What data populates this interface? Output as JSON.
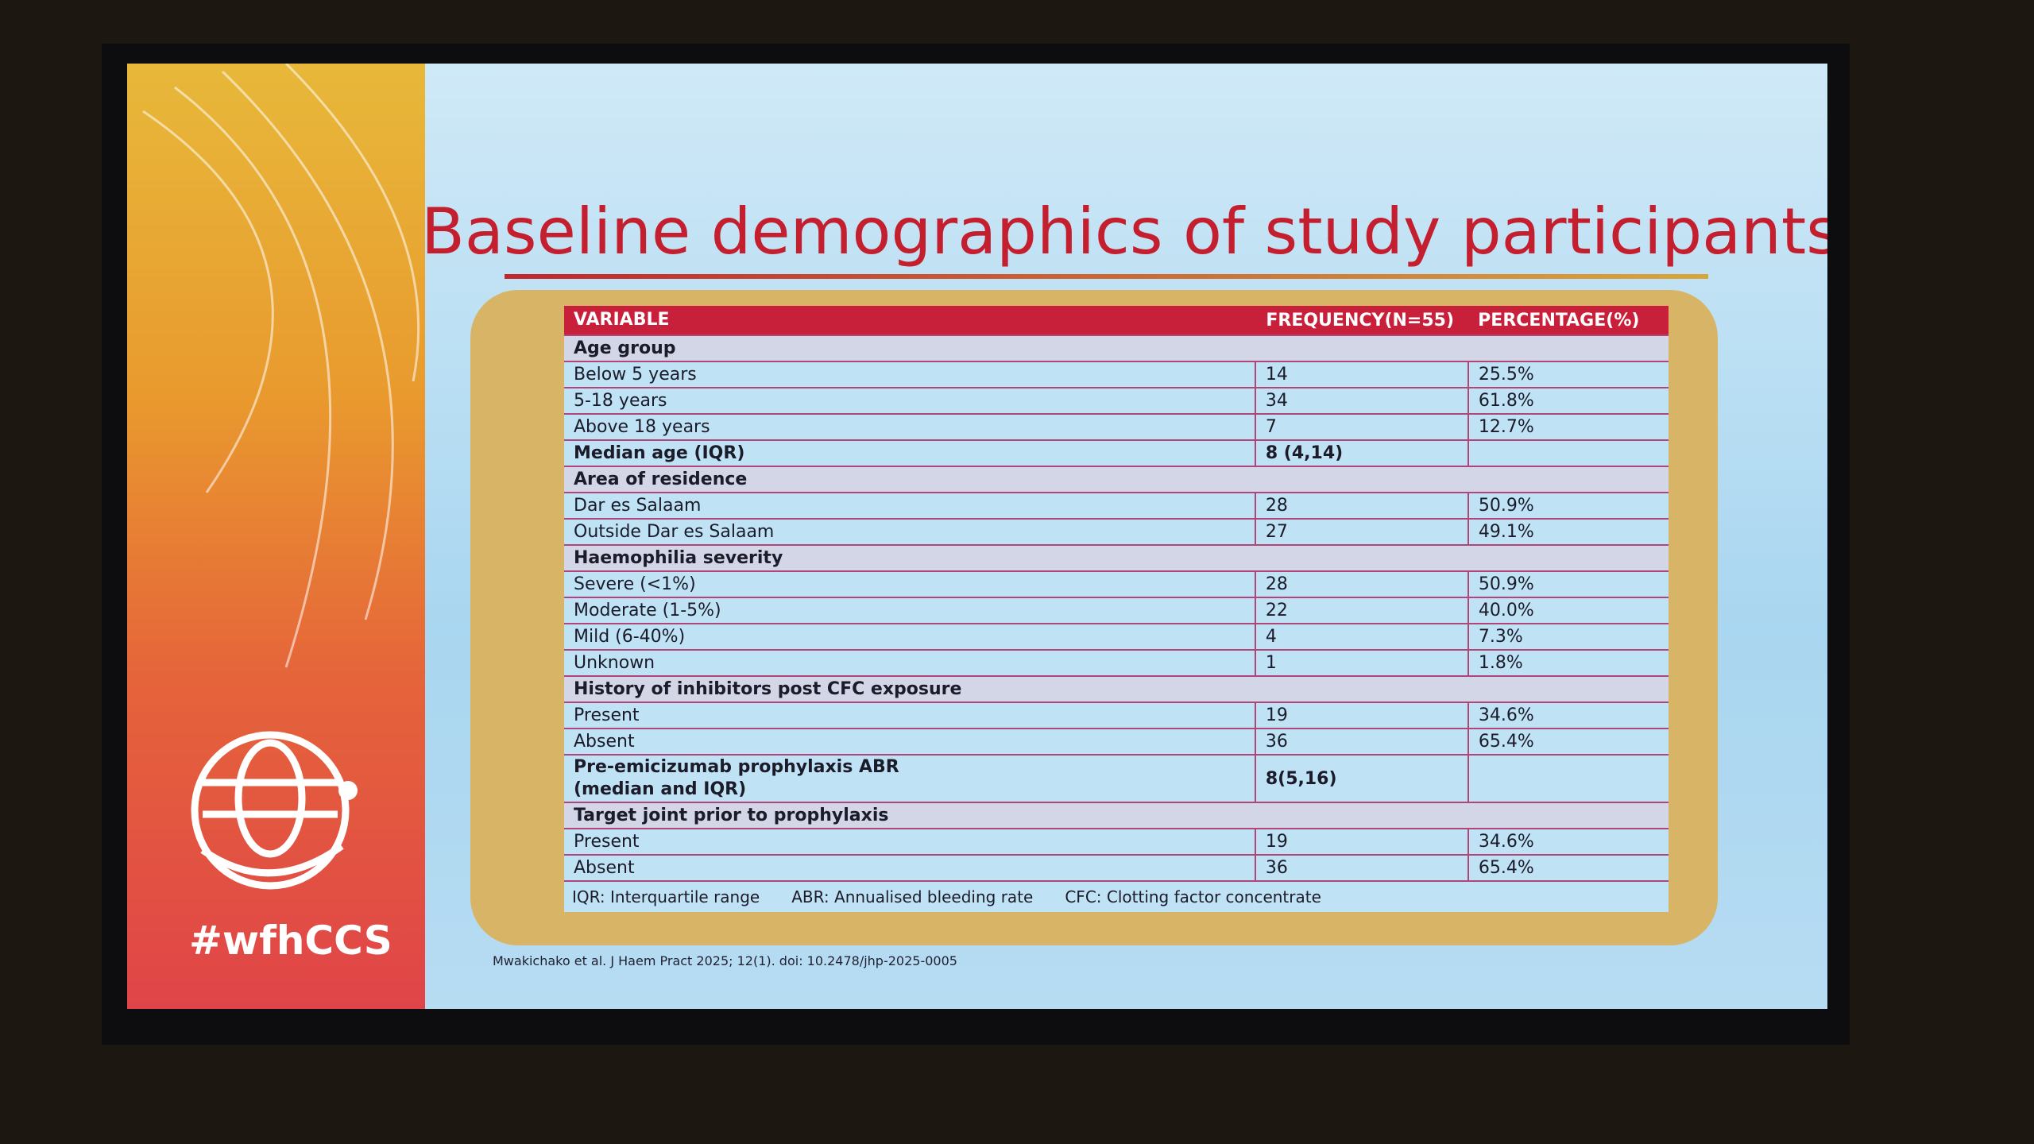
{
  "slide": {
    "title": "Baseline demographics of study participants",
    "brand": "#wfhCCS",
    "table": {
      "header": [
        "VARIABLE",
        "FREQUENCY(N=55)",
        "PERCENTAGE(%)"
      ],
      "rows": [
        [
          "Age group"
        ],
        [
          "Below 5 years",
          "14",
          "25.5%"
        ],
        [
          "5-18 years",
          "34",
          "61.8%"
        ],
        [
          "Above 18 years",
          "7",
          "12.7%"
        ],
        [
          "Median age (IQR)",
          "8 (4,14)"
        ],
        [
          "Area of residence"
        ],
        [
          "Dar es Salaam",
          "28",
          "50.9%"
        ],
        [
          "Outside Dar es Salaam",
          "27",
          "49.1%"
        ],
        [
          "Haemophilia severity"
        ],
        [
          "Severe (<1%)",
          "28",
          "50.9%"
        ],
        [
          "Moderate (1-5%)",
          "22",
          "40.0%"
        ],
        [
          "Mild (6-40%)",
          "4",
          "7.3%"
        ],
        [
          "Unknown",
          "1",
          "1.8%"
        ],
        [
          "History of inhibitors post CFC exposure"
        ],
        [
          "Present",
          "19",
          "34.6%"
        ],
        [
          "Absent",
          "36",
          "65.4%"
        ],
        [
          "Pre-emicizumab prophylaxis ABR\n(median and IQR)",
          "8(5,16)"
        ],
        [
          "Target joint prior to prophylaxis"
        ],
        [
          "Present",
          "19",
          "34.6%"
        ],
        [
          "Absent",
          "36",
          "65.4%"
        ]
      ],
      "notes": [
        "IQR: Interquartile range",
        "ABR: Annualised bleeding rate",
        "CFC: Clotting factor concentrate"
      ]
    },
    "citation": "Mwakichako et al. J Haem Pract 2025; 12(1). doi: 10.2478/jhp-2025-0005"
  }
}
